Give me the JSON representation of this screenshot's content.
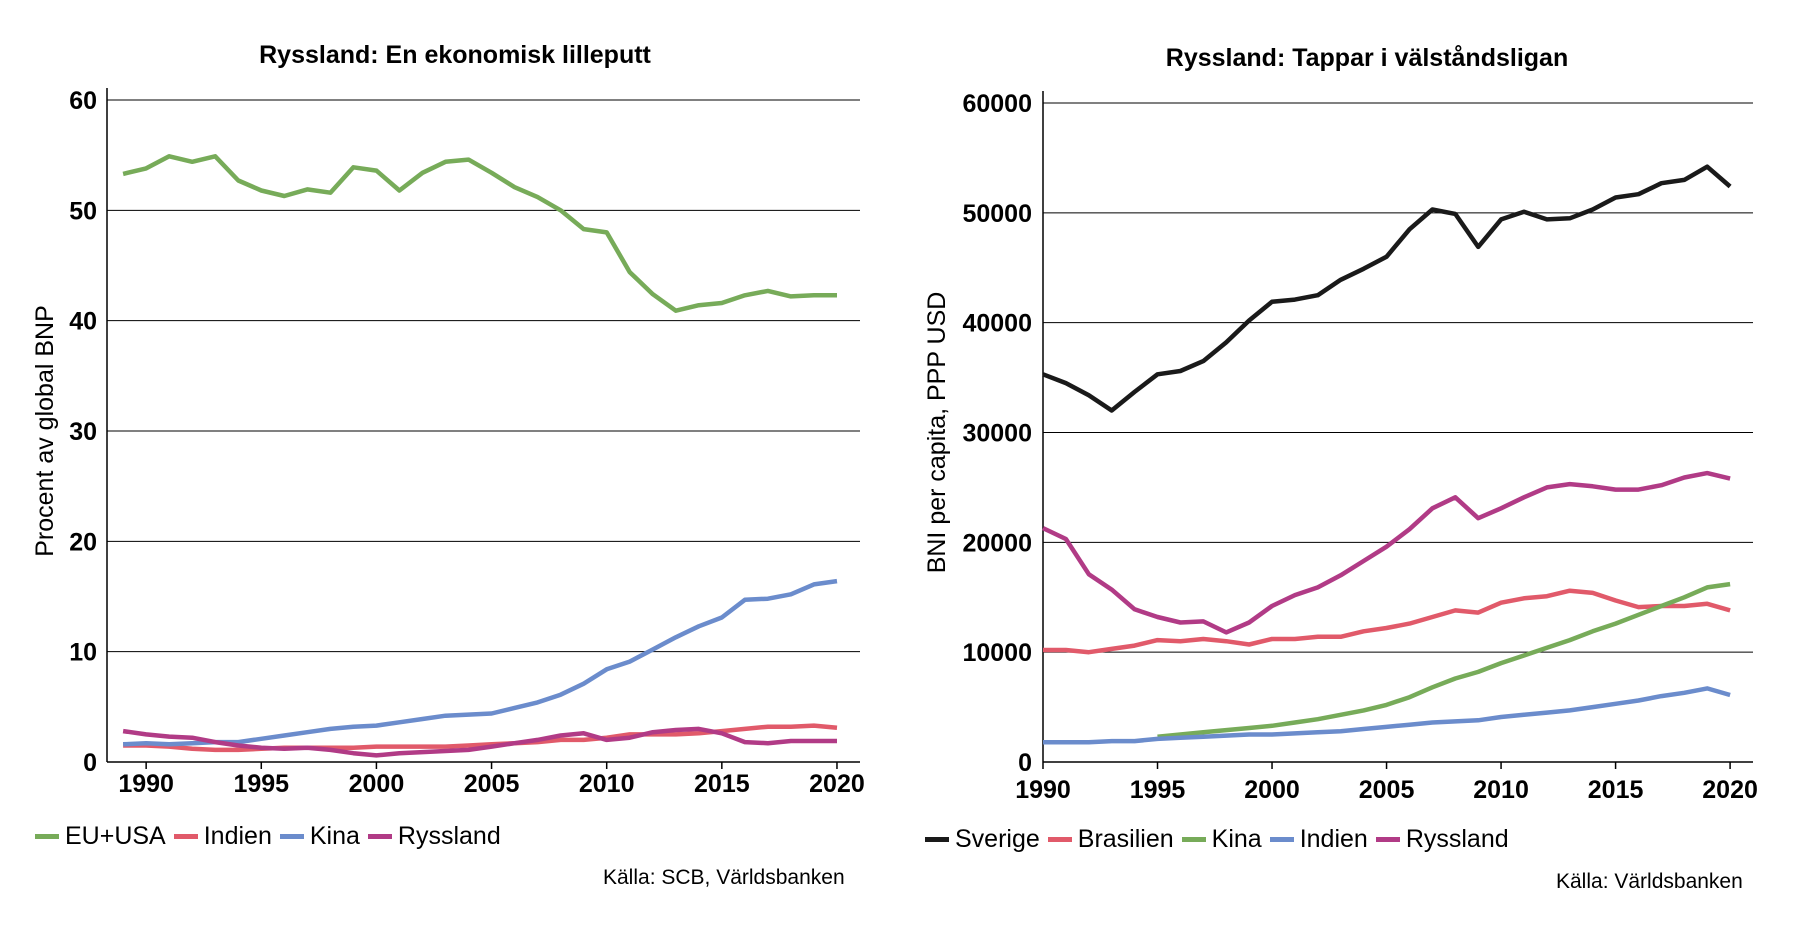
{
  "colors": {
    "green": "#77ab59",
    "red": "#e15a6a",
    "blue": "#6b8ccc",
    "magenta": "#b13b86",
    "black": "#1a1a1a",
    "grid": "#000000"
  },
  "chart_data": [
    {
      "type": "line",
      "title": "Ryssland: En ekonomisk lilleputt",
      "xlabel": "",
      "ylabel": "Procent av global BNP",
      "xlim": [
        1988.3,
        2021
      ],
      "ylim": [
        0,
        60
      ],
      "xticks": [
        "1990",
        "1995",
        "2000",
        "2005",
        "2010",
        "2015",
        "2020"
      ],
      "yticks": [
        "0",
        "10",
        "20",
        "30",
        "40",
        "50",
        "60"
      ],
      "grid": true,
      "legend_position": "bottom",
      "source": "Källa: SCB, Världsbanken",
      "x": [
        1989,
        1990,
        1991,
        1992,
        1993,
        1994,
        1995,
        1996,
        1997,
        1998,
        1999,
        2000,
        2001,
        2002,
        2003,
        2004,
        2005,
        2006,
        2007,
        2008,
        2009,
        2010,
        2011,
        2012,
        2013,
        2014,
        2015,
        2016,
        2017,
        2018,
        2019,
        2020
      ],
      "series": [
        {
          "name": "EU+USA",
          "color": "green",
          "values": [
            53.3,
            53.8,
            54.9,
            54.4,
            54.9,
            52.7,
            51.8,
            51.3,
            51.9,
            51.6,
            53.9,
            53.6,
            51.8,
            53.4,
            54.4,
            54.6,
            53.4,
            52.1,
            51.2,
            50.0,
            48.3,
            48.0,
            44.4,
            42.4,
            40.9,
            41.4,
            41.6,
            42.3,
            42.7,
            42.2,
            42.3,
            42.3
          ]
        },
        {
          "name": "Indien",
          "color": "red",
          "values": [
            1.5,
            1.5,
            1.4,
            1.2,
            1.1,
            1.1,
            1.2,
            1.3,
            1.3,
            1.3,
            1.3,
            1.4,
            1.4,
            1.4,
            1.4,
            1.5,
            1.6,
            1.7,
            1.8,
            2.0,
            2.0,
            2.2,
            2.5,
            2.5,
            2.5,
            2.6,
            2.8,
            3.0,
            3.2,
            3.2,
            3.3,
            3.1
          ]
        },
        {
          "name": "Kina",
          "color": "blue",
          "values": [
            1.6,
            1.7,
            1.6,
            1.7,
            1.8,
            1.8,
            2.1,
            2.4,
            2.7,
            3.0,
            3.2,
            3.3,
            3.6,
            3.9,
            4.2,
            4.3,
            4.4,
            4.9,
            5.4,
            6.1,
            7.1,
            8.4,
            9.1,
            10.2,
            11.3,
            12.3,
            13.1,
            14.7,
            14.8,
            15.2,
            16.1,
            16.4
          ]
        },
        {
          "name": "Ryssland",
          "color": "magenta",
          "values": [
            2.8,
            2.5,
            2.3,
            2.2,
            1.8,
            1.5,
            1.3,
            1.2,
            1.3,
            1.1,
            0.8,
            0.6,
            0.8,
            0.9,
            1.0,
            1.1,
            1.4,
            1.7,
            2.0,
            2.4,
            2.6,
            2.0,
            2.2,
            2.7,
            2.9,
            3.0,
            2.6,
            1.8,
            1.7,
            1.9,
            1.9,
            1.9
          ]
        }
      ]
    },
    {
      "type": "line",
      "title": "Ryssland: Tappar i välståndsligan",
      "xlabel": "",
      "ylabel": "BNI per capita, PPP USD",
      "xlim": [
        1990,
        2021
      ],
      "ylim": [
        0,
        60000
      ],
      "xticks": [
        "1990",
        "1995",
        "2000",
        "2005",
        "2010",
        "2015",
        "2020"
      ],
      "yticks": [
        "0",
        "10000",
        "20000",
        "30000",
        "40000",
        "50000",
        "60000"
      ],
      "grid": true,
      "legend_position": "bottom",
      "source": "Källa: Världsbanken",
      "x": [
        1990,
        1991,
        1992,
        1993,
        1994,
        1995,
        1996,
        1997,
        1998,
        1999,
        2000,
        2001,
        2002,
        2003,
        2004,
        2005,
        2006,
        2007,
        2008,
        2009,
        2010,
        2011,
        2012,
        2013,
        2014,
        2015,
        2016,
        2017,
        2018,
        2019,
        2020
      ],
      "series": [
        {
          "name": "Sverige",
          "color": "black",
          "values": [
            35300,
            34500,
            33400,
            32000,
            33700,
            35300,
            35600,
            36500,
            38200,
            40200,
            41900,
            42100,
            42500,
            43900,
            44900,
            46000,
            48500,
            50300,
            49900,
            46900,
            49400,
            50100,
            49400,
            49500,
            50300,
            51400,
            51700,
            52700,
            53000,
            54200,
            52400
          ]
        },
        {
          "name": "Brasilien",
          "color": "red",
          "values": [
            10200,
            10200,
            10000,
            10300,
            10600,
            11100,
            11000,
            11200,
            11000,
            10700,
            11200,
            11200,
            11400,
            11400,
            11900,
            12200,
            12600,
            13200,
            13800,
            13600,
            14500,
            14900,
            15100,
            15600,
            15400,
            14700,
            14100,
            14200,
            14200,
            14400,
            13800
          ]
        },
        {
          "name": "Kina",
          "color": "green",
          "values": [
            null,
            null,
            null,
            null,
            null,
            2300,
            2500,
            2700,
            2900,
            3100,
            3300,
            3600,
            3900,
            4300,
            4700,
            5200,
            5900,
            6800,
            7600,
            8200,
            9000,
            9700,
            10400,
            11100,
            11900,
            12600,
            13400,
            14200,
            15000,
            15900,
            16200
          ]
        },
        {
          "name": "Indien",
          "color": "blue",
          "values": [
            1800,
            1800,
            1800,
            1900,
            1900,
            2100,
            2200,
            2300,
            2400,
            2500,
            2500,
            2600,
            2700,
            2800,
            3000,
            3200,
            3400,
            3600,
            3700,
            3800,
            4100,
            4300,
            4500,
            4700,
            5000,
            5300,
            5600,
            6000,
            6300,
            6700,
            6100
          ]
        },
        {
          "name": "Ryssland",
          "color": "magenta",
          "values": [
            21300,
            20300,
            17100,
            15700,
            13900,
            13200,
            12700,
            12800,
            11800,
            12700,
            14200,
            15200,
            15900,
            17000,
            18300,
            19600,
            21200,
            23100,
            24100,
            22200,
            23100,
            24100,
            25000,
            25300,
            25100,
            24800,
            24800,
            25200,
            25900,
            26300,
            25800
          ]
        }
      ]
    }
  ]
}
